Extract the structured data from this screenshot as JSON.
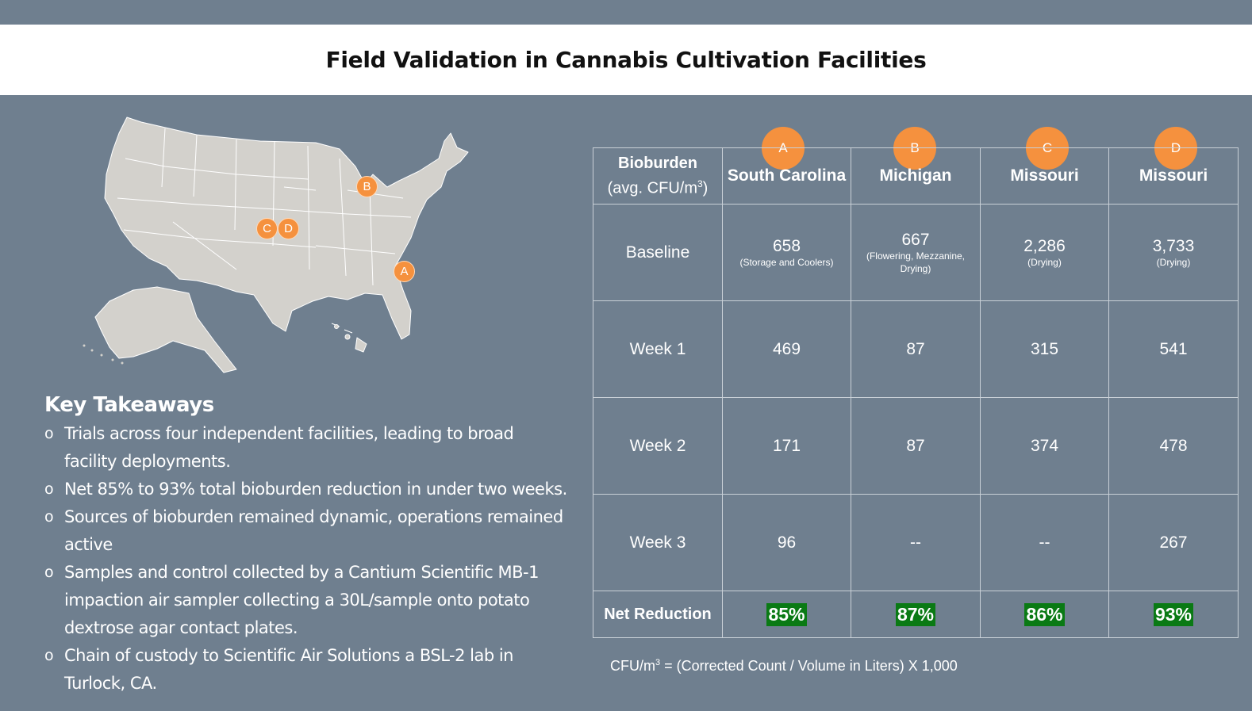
{
  "page": {
    "title": "Field Validation in Cannabis Cultivation Facilities"
  },
  "map": {
    "markers": [
      {
        "label": "A"
      },
      {
        "label": "B"
      },
      {
        "label": "C"
      },
      {
        "label": "D"
      }
    ],
    "land_color": "#d3d1cc",
    "marker_color": "#f5913e"
  },
  "takeaways": {
    "heading": "Key Takeaways",
    "bullet": "o",
    "items": [
      "Trials across four independent facilities, leading to broad facility deployments.",
      "Net 85% to 93% total bioburden reduction in under two weeks.",
      "Sources of bioburden remained dynamic, operations remained active",
      "Samples and control collected by a Cantium Scientific MB-1 impaction air sampler collecting a 30L/sample onto potato dextrose agar contact plates.",
      "Chain of custody to Scientific Air Solutions a BSL-2 lab in Turlock, CA."
    ]
  },
  "table": {
    "header_label_line1": "Bioburden",
    "header_label_line2_prefix": "(avg. CFU/m",
    "header_label_line2_sup": "3",
    "header_label_line2_suffix": ")",
    "sites": [
      {
        "letter": "A",
        "name": "South Carolina"
      },
      {
        "letter": "B",
        "name": "Michigan"
      },
      {
        "letter": "C",
        "name": "Missouri"
      },
      {
        "letter": "D",
        "name": "Missouri"
      }
    ],
    "baseline": {
      "label": "Baseline",
      "values": [
        "658",
        "667",
        "2,286",
        "3,733"
      ],
      "notes": [
        "(Storage and Coolers)",
        "(Flowering, Mezzanine, Drying)",
        "(Drying)",
        "(Drying)"
      ]
    },
    "weeks": [
      {
        "label": "Week 1",
        "values": [
          "469",
          "87",
          "315",
          "541"
        ]
      },
      {
        "label": "Week 2",
        "values": [
          "171",
          "87",
          "374",
          "478"
        ]
      },
      {
        "label": "Week 3",
        "values": [
          "96",
          "--",
          "--",
          "267"
        ]
      }
    ],
    "net": {
      "label": "Net Reduction",
      "values": [
        "85%",
        "87%",
        "86%",
        "93%"
      ],
      "highlight_color": "#0a7a14"
    }
  },
  "formula": {
    "prefix": "CFU/m",
    "sup": "3",
    "suffix": " = (Corrected Count / Volume in Liters) X 1,000"
  }
}
